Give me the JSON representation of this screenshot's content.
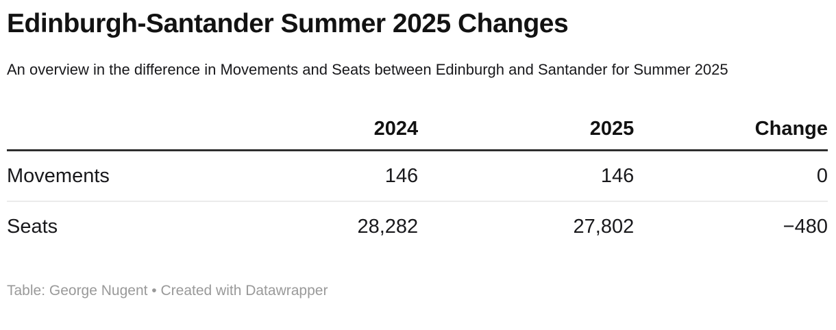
{
  "header": {
    "title": "Edinburgh-Santander Summer 2025 Changes",
    "subtitle": "An overview in the difference in Movements and Seats between Edinburgh and Santander for Summer 2025"
  },
  "table": {
    "columns": [
      "",
      "2024",
      "2025",
      "Change"
    ],
    "rows": [
      {
        "label": "Movements",
        "values": [
          "146",
          "146",
          "0"
        ]
      },
      {
        "label": "Seats",
        "values": [
          "28,282",
          "27,802",
          "−480"
        ]
      }
    ]
  },
  "footer": {
    "credit": "Table: George Nugent • Created with Datawrapper"
  },
  "colors": {
    "text": "#18181b",
    "header_rule": "#2e2e2e",
    "row_divider": "#ebebeb",
    "footer_text": "#999999",
    "background": "#ffffff"
  },
  "chart_data": {
    "type": "table",
    "title": "Edinburgh-Santander Summer 2025 Changes",
    "subtitle": "An overview in the difference in Movements and Seats between Edinburgh and Santander for Summer 2025",
    "columns": [
      "",
      "2024",
      "2025",
      "Change"
    ],
    "rows": [
      [
        "Movements",
        146,
        146,
        0
      ],
      [
        "Seats",
        28282,
        27802,
        -480
      ]
    ],
    "notes": "Numeric columns right-aligned; header separated by thick dark rule; light divider between body rows",
    "credit": "Table: George Nugent • Created with Datawrapper"
  }
}
